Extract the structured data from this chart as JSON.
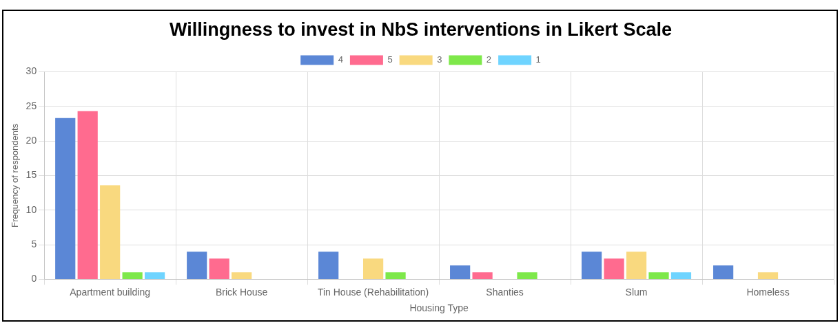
{
  "chart_data": {
    "type": "bar",
    "title": "Willingness to invest in NbS interventions in Likert Scale",
    "xlabel": "Housing Type",
    "ylabel": "Frequency of respondents",
    "categories": [
      "Apartment building",
      "Brick House",
      "Tin House (Rehabilitation)",
      "Shanties",
      "Slum",
      "Homeless"
    ],
    "series": [
      {
        "name": "4",
        "color": "#5b87d6",
        "values": [
          23.3,
          4,
          4,
          2,
          4,
          2
        ]
      },
      {
        "name": "5",
        "color": "#ff6b8f",
        "values": [
          24.3,
          3,
          0,
          1,
          3,
          0
        ]
      },
      {
        "name": "3",
        "color": "#f9d97f",
        "values": [
          13.6,
          1,
          3,
          0,
          4,
          1
        ]
      },
      {
        "name": "2",
        "color": "#7ee84a",
        "values": [
          1,
          0,
          1,
          1,
          1,
          0
        ]
      },
      {
        "name": "1",
        "color": "#6fd4ff",
        "values": [
          1,
          0,
          0,
          0,
          1,
          0
        ]
      }
    ],
    "ylim": [
      0,
      30
    ],
    "yticks": [
      0,
      5,
      10,
      15,
      20,
      25,
      30
    ],
    "grid": true,
    "legend": "top"
  }
}
